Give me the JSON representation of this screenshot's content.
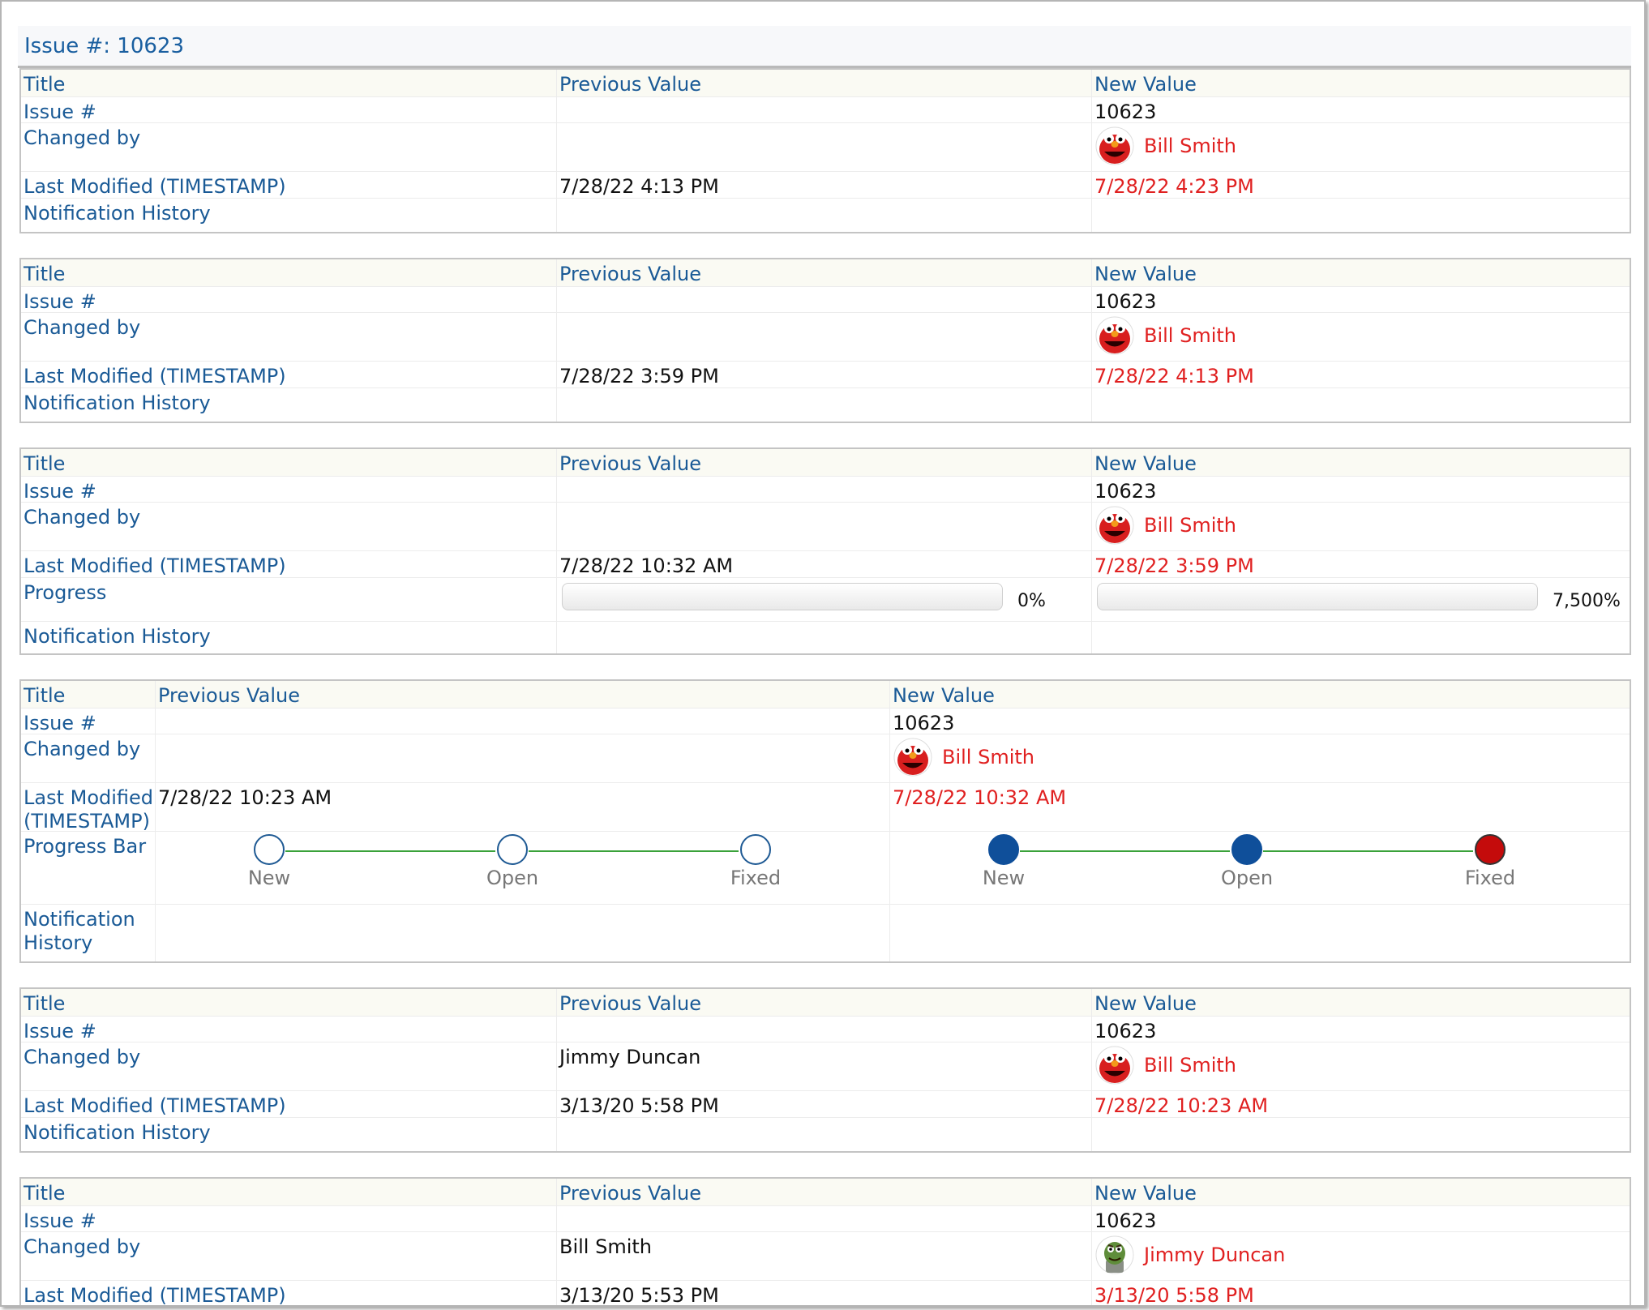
{
  "issue_header": "Issue #: 10623",
  "columns": {
    "title": "Title",
    "previous": "Previous Value",
    "new": "New Value"
  },
  "labels": {
    "issue": "Issue #",
    "changed_by": "Changed by",
    "last_modified": "Last Modified (TIMESTAMP)",
    "progress": "Progress",
    "progress_bar": "Progress Bar",
    "notification_history": "Notification History"
  },
  "panels": [
    {
      "issue_new": "10623",
      "changed_by_prev": "",
      "changed_by_new": "Bill Smith",
      "avatar_new": "red-monster-avatar",
      "modified_prev": "7/28/22 4:13 PM",
      "modified_new": "7/28/22 4:23 PM"
    },
    {
      "issue_new": "10623",
      "changed_by_prev": "",
      "changed_by_new": "Bill Smith",
      "avatar_new": "red-monster-avatar",
      "modified_prev": "7/28/22 3:59 PM",
      "modified_new": "7/28/22 4:13 PM"
    },
    {
      "issue_new": "10623",
      "changed_by_prev": "",
      "changed_by_new": "Bill Smith",
      "avatar_new": "red-monster-avatar",
      "modified_prev": "7/28/22 10:32 AM",
      "modified_new": "7/28/22 3:59 PM",
      "progress_prev": {
        "text": "0%",
        "value": 0
      },
      "progress_new": {
        "text": "7,500%",
        "value": 7500
      }
    },
    {
      "issue_new": "10623",
      "changed_by_prev": "",
      "changed_by_new": "Bill Smith",
      "avatar_new": "red-monster-avatar",
      "modified_prev": "7/28/22 10:23 AM",
      "modified_new": "7/28/22 10:32 AM",
      "progress_bar_prev": [
        {
          "label": "New",
          "state": "empty"
        },
        {
          "label": "Open",
          "state": "empty"
        },
        {
          "label": "Fixed",
          "state": "empty"
        }
      ],
      "progress_bar_new": [
        {
          "label": "New",
          "state": "done"
        },
        {
          "label": "Open",
          "state": "done"
        },
        {
          "label": "Fixed",
          "state": "current"
        }
      ],
      "colors": {
        "done": "#0f4f9a",
        "current": "#c40b0b",
        "connector": "#3aa23a"
      }
    },
    {
      "issue_new": "10623",
      "changed_by_prev": "Jimmy Duncan",
      "changed_by_new": "Bill Smith",
      "avatar_new": "red-monster-avatar",
      "modified_prev": "3/13/20 5:58 PM",
      "modified_new": "7/28/22 10:23 AM"
    },
    {
      "issue_new": "10623",
      "changed_by_prev": "Bill Smith",
      "changed_by_new": "Jimmy Duncan",
      "avatar_new": "green-grouch-avatar",
      "modified_prev": "3/13/20 5:53 PM",
      "modified_new": "3/13/20 5:58 PM"
    }
  ],
  "colors": {
    "label": "#1a5a96",
    "changed_value": "#e02020",
    "border": "#c4c4c4"
  }
}
